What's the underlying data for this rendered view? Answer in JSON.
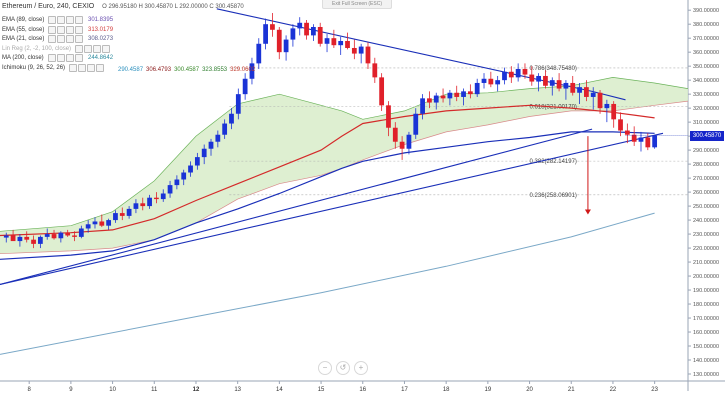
{
  "header": {
    "title": "Ethereum / Euro, 240, CEXIO",
    "ohlc": "O 296.95180 H 300.45870 L 292.00000 C 300.45870",
    "exit_fullscreen": "Exit Full Screen (ESC)"
  },
  "indicators": [
    {
      "label": "EMA (89, close)",
      "value": "301.8395",
      "color": "#6a4fb0"
    },
    {
      "label": "EMA (55, close)",
      "value": "313.0179",
      "color": "#d23b3b"
    },
    {
      "label": "EMA (21, close)",
      "value": "308.0273",
      "color": "#5b5b8c"
    },
    {
      "label": "Lin Reg (2, -2, 100, close)",
      "value": "",
      "color": "#999999"
    },
    {
      "label": "MA (200, close)",
      "value": "244.8642",
      "color": "#2c8a9e"
    },
    {
      "label": "Ichimoku (9, 26, 52, 26)",
      "value": "",
      "color": "#333333"
    }
  ],
  "ichimoku_values": [
    {
      "value": "290.4587",
      "color": "#2a8fbd"
    },
    {
      "value": "306.4793",
      "color": "#8b1a1a"
    },
    {
      "value": "300.4587",
      "color": "#3a8a2c"
    },
    {
      "value": "323.8553",
      "color": "#2d7d2d"
    },
    {
      "value": "329.0602",
      "color": "#c0392b"
    }
  ],
  "price_tag": "300.45870",
  "zoom_controls": [
    "−",
    "↺",
    "+"
  ],
  "fib_labels": [
    {
      "text": "0.786(348.75480)",
      "level": 348.7548
    },
    {
      "text": "0.618(321.00170)",
      "level": 321.0017
    },
    {
      "text": "0.382(282.14197)",
      "level": 282.14197
    },
    {
      "text": "0.236(258.06901)",
      "level": 258.06901
    }
  ],
  "chart_data": {
    "type": "candlestick",
    "x_ticks": [
      "8",
      "9",
      "10",
      "11",
      "12",
      "13",
      "14",
      "15",
      "16",
      "17",
      "18",
      "19",
      "20",
      "21",
      "22",
      "23"
    ],
    "y_ticks": [
      "130.00000",
      "140.00000",
      "150.00000",
      "160.00000",
      "170.00000",
      "180.00000",
      "190.00000",
      "200.00000",
      "210.00000",
      "220.00000",
      "230.00000",
      "240.00000",
      "250.00000",
      "260.00000",
      "270.00000",
      "280.00000",
      "290.00000",
      "300.00000",
      "310.00000",
      "320.00000",
      "330.00000",
      "340.00000",
      "350.00000",
      "360.00000",
      "370.00000",
      "380.00000",
      "390.00000"
    ],
    "ylim": [
      125,
      393
    ],
    "xlim": [
      7.3,
      23.8
    ],
    "colors": {
      "up": "#1a33d6",
      "down": "#e0202a",
      "ma200": "#7aa8c7",
      "ema55": "#d42a2a",
      "ema89": "#1a2fb8",
      "trend": "#1a2fb8",
      "cloud": "#d8ecc9"
    },
    "candles": [
      [
        227.5,
        231,
        224,
        229
      ],
      [
        229,
        233,
        226,
        225
      ],
      [
        225,
        230,
        221,
        228
      ],
      [
        228,
        232,
        224,
        226
      ],
      [
        226,
        229,
        220,
        223
      ],
      [
        223,
        229,
        220,
        228
      ],
      [
        228,
        234,
        226,
        230
      ],
      [
        230,
        233,
        226,
        227
      ],
      [
        227,
        232,
        224,
        231
      ],
      [
        231,
        233,
        228,
        229
      ],
      [
        229,
        232,
        225,
        228
      ],
      [
        228,
        236,
        227,
        234
      ],
      [
        234,
        240,
        231,
        237
      ],
      [
        237,
        242,
        234,
        239
      ],
      [
        239,
        244,
        235,
        236
      ],
      [
        236,
        241,
        233,
        240
      ],
      [
        240,
        247,
        238,
        245
      ],
      [
        245,
        249,
        240,
        243
      ],
      [
        243,
        250,
        241,
        248
      ],
      [
        248,
        255,
        245,
        252
      ],
      [
        252,
        256,
        247,
        250
      ],
      [
        250,
        258,
        248,
        256
      ],
      [
        256,
        260,
        252,
        255
      ],
      [
        255,
        262,
        253,
        259
      ],
      [
        259,
        268,
        256,
        265
      ],
      [
        265,
        272,
        262,
        269
      ],
      [
        269,
        276,
        265,
        274
      ],
      [
        274,
        282,
        271,
        279
      ],
      [
        279,
        288,
        276,
        285
      ],
      [
        285,
        294,
        280,
        291
      ],
      [
        291,
        298,
        286,
        296
      ],
      [
        296,
        304,
        292,
        301
      ],
      [
        301,
        312,
        298,
        309
      ],
      [
        309,
        320,
        305,
        316
      ],
      [
        316,
        334,
        312,
        330
      ],
      [
        330,
        345,
        326,
        341
      ],
      [
        341,
        356,
        337,
        352
      ],
      [
        352,
        370,
        348,
        366
      ],
      [
        366,
        384,
        362,
        380
      ],
      [
        380,
        388,
        371,
        376
      ],
      [
        376,
        378,
        355,
        360
      ],
      [
        360,
        372,
        354,
        369
      ],
      [
        369,
        380,
        364,
        377
      ],
      [
        377,
        385,
        372,
        381
      ],
      [
        381,
        383,
        369,
        372
      ],
      [
        372,
        380,
        368,
        378
      ],
      [
        378,
        381,
        364,
        366
      ],
      [
        366,
        373,
        360,
        370
      ],
      [
        370,
        376,
        363,
        365
      ],
      [
        365,
        371,
        358,
        368
      ],
      [
        368,
        374,
        362,
        363
      ],
      [
        363,
        369,
        355,
        359
      ],
      [
        359,
        366,
        352,
        364
      ],
      [
        364,
        367,
        348,
        352
      ],
      [
        352,
        356,
        338,
        342
      ],
      [
        342,
        345,
        318,
        322
      ],
      [
        322,
        325,
        300,
        306
      ],
      [
        306,
        310,
        291,
        296
      ],
      [
        296,
        300,
        283,
        291
      ],
      [
        291,
        303,
        287,
        301
      ],
      [
        301,
        320,
        298,
        316
      ],
      [
        316,
        330,
        312,
        327
      ],
      [
        327,
        332,
        320,
        324
      ],
      [
        324,
        331,
        319,
        329
      ],
      [
        329,
        334,
        324,
        327
      ],
      [
        327,
        333,
        322,
        331
      ],
      [
        331,
        336,
        325,
        328
      ],
      [
        328,
        334,
        322,
        332
      ],
      [
        332,
        337,
        327,
        330
      ],
      [
        330,
        341,
        328,
        338
      ],
      [
        338,
        345,
        334,
        341
      ],
      [
        341,
        346,
        335,
        337
      ],
      [
        337,
        343,
        332,
        340
      ],
      [
        340,
        349,
        337,
        346
      ],
      [
        346,
        350,
        338,
        342
      ],
      [
        342,
        352,
        339,
        348
      ],
      [
        348,
        352,
        341,
        344
      ],
      [
        344,
        350,
        336,
        339
      ],
      [
        339,
        345,
        332,
        343
      ],
      [
        343,
        347,
        334,
        336
      ],
      [
        336,
        342,
        329,
        340
      ],
      [
        340,
        345,
        332,
        334
      ],
      [
        334,
        340,
        326,
        338
      ],
      [
        338,
        343,
        329,
        331
      ],
      [
        331,
        338,
        323,
        335
      ],
      [
        335,
        340,
        325,
        328
      ],
      [
        328,
        335,
        319,
        331
      ],
      [
        331,
        333,
        316,
        320
      ],
      [
        320,
        326,
        310,
        323
      ],
      [
        323,
        325,
        306,
        312
      ],
      [
        312,
        317,
        300,
        304
      ],
      [
        304,
        309,
        295,
        301
      ],
      [
        301,
        307,
        293,
        296
      ],
      [
        296,
        303,
        289,
        299
      ],
      [
        299,
        302,
        290,
        292
      ],
      [
        292,
        301,
        291,
        300.4587
      ]
    ],
    "ma200": [
      [
        7.3,
        144
      ],
      [
        12,
        171
      ],
      [
        15,
        188
      ],
      [
        18,
        207
      ],
      [
        21,
        228
      ],
      [
        23,
        245
      ]
    ],
    "ema55": [
      [
        7.3,
        229
      ],
      [
        9,
        231
      ],
      [
        10,
        233
      ],
      [
        11,
        241
      ],
      [
        12,
        254
      ],
      [
        13,
        266
      ],
      [
        14,
        278
      ],
      [
        15,
        290
      ],
      [
        15.5,
        300
      ],
      [
        16,
        309
      ],
      [
        17,
        314
      ],
      [
        18,
        318
      ],
      [
        19,
        320
      ],
      [
        20,
        322
      ],
      [
        21,
        320
      ],
      [
        22,
        317
      ],
      [
        23,
        313
      ]
    ],
    "ema89": [
      [
        7.3,
        212
      ],
      [
        9,
        215
      ],
      [
        10,
        218
      ],
      [
        11,
        226
      ],
      [
        12,
        238
      ],
      [
        13,
        248
      ],
      [
        14,
        259
      ],
      [
        15,
        271
      ],
      [
        15.5,
        277
      ],
      [
        16,
        282
      ],
      [
        17,
        288
      ],
      [
        18,
        292
      ],
      [
        19,
        296
      ],
      [
        20,
        299
      ],
      [
        21,
        303
      ],
      [
        22,
        303
      ],
      [
        23,
        302
      ]
    ],
    "trend_lines": [
      [
        [
          7.3,
          194
        ],
        [
          21.5,
          305
        ]
      ],
      [
        [
          7.3,
          194
        ],
        [
          23.2,
          302
        ]
      ],
      [
        [
          12.5,
          391
        ],
        [
          21.5,
          332
        ],
        [
          22.3,
          326
        ]
      ]
    ],
    "cloud_upper": [
      [
        7.3,
        232
      ],
      [
        9,
        236
      ],
      [
        10,
        246
      ],
      [
        11,
        268
      ],
      [
        12,
        300
      ],
      [
        13,
        323
      ],
      [
        14,
        330
      ],
      [
        15,
        322
      ],
      [
        15.5,
        318
      ],
      [
        16,
        312
      ],
      [
        17,
        318
      ],
      [
        18,
        330
      ],
      [
        19,
        331
      ],
      [
        20,
        334
      ],
      [
        21,
        336
      ],
      [
        22,
        342
      ],
      [
        23,
        338
      ],
      [
        23.8,
        334
      ]
    ],
    "cloud_lower": [
      [
        7.3,
        216
      ],
      [
        9,
        218
      ],
      [
        10,
        220
      ],
      [
        11,
        226
      ],
      [
        12,
        238
      ],
      [
        13,
        255
      ],
      [
        14,
        266
      ],
      [
        15,
        272
      ],
      [
        15.5,
        277
      ],
      [
        16,
        283
      ],
      [
        17,
        294
      ],
      [
        18,
        303
      ],
      [
        19,
        308
      ],
      [
        20,
        314
      ],
      [
        21,
        318
      ],
      [
        22,
        318
      ],
      [
        23,
        322
      ],
      [
        23.8,
        325
      ]
    ],
    "fib_lines": [
      348.7548,
      321.0017,
      282.14197,
      258.06901
    ],
    "arrow": {
      "x": 21.4,
      "from": 300,
      "to": 244
    }
  }
}
